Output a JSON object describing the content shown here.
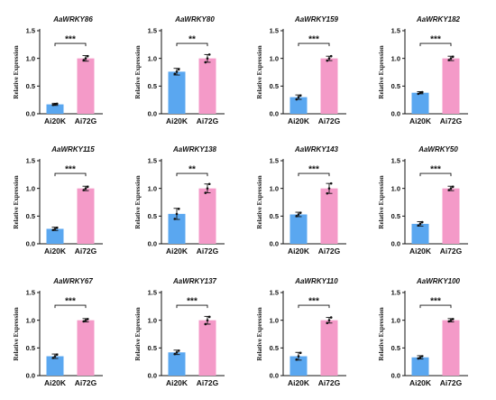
{
  "chart_data": [
    {
      "type": "bar",
      "title": "AaWRKY86",
      "categories": [
        "Ai20K",
        "Ai72G"
      ],
      "values": [
        0.17,
        1.0
      ],
      "errors": [
        0.02,
        0.05
      ],
      "points": [
        [
          0.16,
          0.17,
          0.18
        ],
        [
          0.97,
          1.0,
          1.04
        ]
      ],
      "ylabel": "Relative Expression",
      "ylim": [
        0,
        1.5
      ],
      "yticks": [
        "0.0",
        "0.5",
        "1.0",
        "1.5"
      ],
      "significance": "***",
      "colors": [
        "#5aa7f0",
        "#f49ac8"
      ]
    },
    {
      "type": "bar",
      "title": "AaWRKY80",
      "categories": [
        "Ai20K",
        "Ai72G"
      ],
      "values": [
        0.76,
        1.0
      ],
      "errors": [
        0.06,
        0.07
      ],
      "points": [
        [
          0.72,
          0.76,
          0.8
        ],
        [
          0.93,
          1.0,
          1.07
        ]
      ],
      "ylabel": "Relative Expression",
      "ylim": [
        0,
        1.5
      ],
      "yticks": [
        "0.0",
        "0.5",
        "1.0",
        "1.5"
      ],
      "significance": "**",
      "colors": [
        "#5aa7f0",
        "#f49ac8"
      ]
    },
    {
      "type": "bar",
      "title": "AaWRKY159",
      "categories": [
        "Ai20K",
        "Ai72G"
      ],
      "values": [
        0.3,
        1.0
      ],
      "errors": [
        0.04,
        0.04
      ],
      "points": [
        [
          0.26,
          0.3,
          0.33
        ],
        [
          0.96,
          1.0,
          1.04
        ]
      ],
      "ylabel": "Relative Expression",
      "ylim": [
        0,
        1.5
      ],
      "yticks": [
        "0.0",
        "0.5",
        "1.0",
        "1.5"
      ],
      "significance": "***",
      "colors": [
        "#5aa7f0",
        "#f49ac8"
      ]
    },
    {
      "type": "bar",
      "title": "AaWRKY182",
      "categories": [
        "Ai20K",
        "Ai72G"
      ],
      "values": [
        0.38,
        1.0
      ],
      "errors": [
        0.02,
        0.04
      ],
      "points": [
        [
          0.36,
          0.38,
          0.39
        ],
        [
          0.97,
          1.0,
          1.03
        ]
      ],
      "ylabel": "Relative Expression",
      "ylim": [
        0,
        1.5
      ],
      "yticks": [
        "0.0",
        "0.5",
        "1.0",
        "1.5"
      ],
      "significance": "***",
      "colors": [
        "#5aa7f0",
        "#f49ac8"
      ]
    },
    {
      "type": "bar",
      "title": "AaWRKY115",
      "categories": [
        "Ai20K",
        "Ai72G"
      ],
      "values": [
        0.27,
        1.0
      ],
      "errors": [
        0.03,
        0.04
      ],
      "points": [
        [
          0.25,
          0.27,
          0.29
        ],
        [
          0.97,
          1.0,
          1.03
        ]
      ],
      "ylabel": "Relative Expression",
      "ylim": [
        0,
        1.5
      ],
      "yticks": [
        "0.0",
        "0.5",
        "1.0",
        "1.5"
      ],
      "significance": "***",
      "colors": [
        "#5aa7f0",
        "#f49ac8"
      ]
    },
    {
      "type": "bar",
      "title": "AaWRKY138",
      "categories": [
        "Ai20K",
        "Ai72G"
      ],
      "values": [
        0.54,
        1.0
      ],
      "errors": [
        0.1,
        0.08
      ],
      "points": [
        [
          0.45,
          0.54,
          0.63
        ],
        [
          0.92,
          1.0,
          1.08
        ]
      ],
      "ylabel": "Relative Expression",
      "ylim": [
        0,
        1.5
      ],
      "yticks": [
        "0.0",
        "0.5",
        "1.0",
        "1.5"
      ],
      "significance": "**",
      "colors": [
        "#5aa7f0",
        "#f49ac8"
      ]
    },
    {
      "type": "bar",
      "title": "AaWRKY143",
      "categories": [
        "Ai20K",
        "Ai72G"
      ],
      "values": [
        0.53,
        1.0
      ],
      "errors": [
        0.04,
        0.09
      ],
      "points": [
        [
          0.5,
          0.53,
          0.56
        ],
        [
          0.91,
          1.0,
          1.09
        ]
      ],
      "ylabel": "Relative Expression",
      "ylim": [
        0,
        1.5
      ],
      "yticks": [
        "0.0",
        "0.5",
        "1.0",
        "1.5"
      ],
      "significance": "***",
      "colors": [
        "#5aa7f0",
        "#f49ac8"
      ]
    },
    {
      "type": "bar",
      "title": "AaWRKY50",
      "categories": [
        "Ai20K",
        "Ai72G"
      ],
      "values": [
        0.36,
        1.0
      ],
      "errors": [
        0.04,
        0.04
      ],
      "points": [
        [
          0.33,
          0.36,
          0.39
        ],
        [
          0.97,
          1.0,
          1.03
        ]
      ],
      "ylabel": "Relative Expression",
      "ylim": [
        0,
        1.5
      ],
      "yticks": [
        "0.0",
        "0.5",
        "1.0",
        "1.5"
      ],
      "significance": "***",
      "colors": [
        "#5aa7f0",
        "#f49ac8"
      ]
    },
    {
      "type": "bar",
      "title": "AaWRKY67",
      "categories": [
        "Ai20K",
        "Ai72G"
      ],
      "values": [
        0.35,
        1.0
      ],
      "errors": [
        0.04,
        0.03
      ],
      "points": [
        [
          0.32,
          0.35,
          0.38
        ],
        [
          0.98,
          1.0,
          1.02
        ]
      ],
      "ylabel": "Relative Expression",
      "ylim": [
        0,
        1.5
      ],
      "yticks": [
        "0.0",
        "0.5",
        "1.0",
        "1.5"
      ],
      "significance": "***",
      "colors": [
        "#5aa7f0",
        "#f49ac8"
      ]
    },
    {
      "type": "bar",
      "title": "AaWRKY137",
      "categories": [
        "Ai20K",
        "Ai72G"
      ],
      "values": [
        0.42,
        1.0
      ],
      "errors": [
        0.04,
        0.07
      ],
      "points": [
        [
          0.39,
          0.42,
          0.45
        ],
        [
          0.93,
          1.0,
          1.06
        ]
      ],
      "ylabel": "Relative Expression",
      "ylim": [
        0,
        1.5
      ],
      "yticks": [
        "0.0",
        "0.5",
        "1.0",
        "1.5"
      ],
      "significance": "***",
      "colors": [
        "#5aa7f0",
        "#f49ac8"
      ]
    },
    {
      "type": "bar",
      "title": "AaWRKY110",
      "categories": [
        "Ai20K",
        "Ai72G"
      ],
      "values": [
        0.35,
        1.0
      ],
      "errors": [
        0.07,
        0.05
      ],
      "points": [
        [
          0.29,
          0.35,
          0.41
        ],
        [
          0.95,
          1.0,
          1.05
        ]
      ],
      "ylabel": "Relative Expression",
      "ylim": [
        0,
        1.5
      ],
      "yticks": [
        "0.0",
        "0.5",
        "1.0",
        "1.5"
      ],
      "significance": "***",
      "colors": [
        "#5aa7f0",
        "#f49ac8"
      ]
    },
    {
      "type": "bar",
      "title": "AaWRKY100",
      "categories": [
        "Ai20K",
        "Ai72G"
      ],
      "values": [
        0.33,
        1.0
      ],
      "errors": [
        0.03,
        0.03
      ],
      "points": [
        [
          0.31,
          0.33,
          0.35
        ],
        [
          0.98,
          1.0,
          1.02
        ]
      ],
      "ylabel": "Relative Expression",
      "ylim": [
        0,
        1.5
      ],
      "yticks": [
        "0.0",
        "0.5",
        "1.0",
        "1.5"
      ],
      "significance": "***",
      "colors": [
        "#5aa7f0",
        "#f49ac8"
      ]
    }
  ]
}
